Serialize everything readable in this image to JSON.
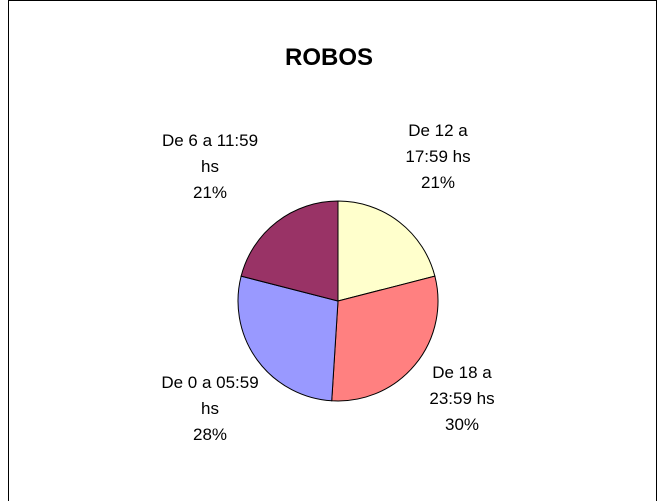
{
  "chart_data": {
    "type": "pie",
    "title": "ROBOS",
    "categories": [
      "De 12 a 17:59 hs",
      "De 18 a 23:59 hs",
      "De 0 a 05:59 hs",
      "De 6 a 11:59 hs"
    ],
    "values": [
      21,
      30,
      28,
      21
    ],
    "value_labels": [
      "21%",
      "30%",
      "28%",
      "21%"
    ],
    "colors": [
      "#ffffcc",
      "#ff8080",
      "#9999ff",
      "#993366"
    ]
  }
}
